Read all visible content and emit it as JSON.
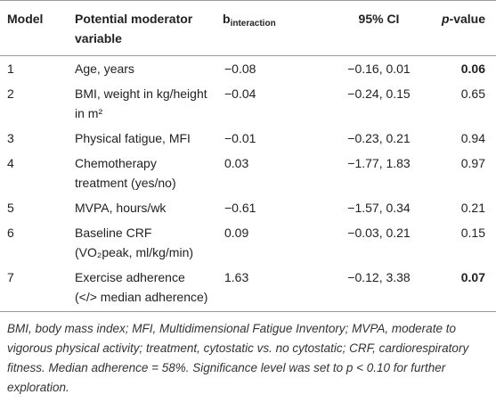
{
  "table": {
    "columns": [
      "Model",
      "Potential moderator variable",
      [
        {
          "text": "b"
        },
        {
          "text": "interaction",
          "sub": true
        }
      ],
      "95% CI",
      [
        {
          "text": "p",
          "italic": true
        },
        {
          "text": "-value"
        }
      ]
    ],
    "rows": [
      {
        "cells": [
          "1",
          "Age, years",
          "−0.08",
          "−0.16, 0.01",
          "0.06"
        ],
        "significant": true
      },
      {
        "cells": [
          "2",
          "BMI, weight in kg/height in m²",
          "−0.04",
          "−0.24, 0.15",
          "0.65"
        ],
        "significant": false
      },
      {
        "cells": [
          "3",
          "Physical fatigue, MFI",
          "−0.01",
          "−0.23, 0.21",
          "0.94"
        ],
        "significant": false
      },
      {
        "cells": [
          "4",
          "Chemotherapy treatment (yes/no)",
          "0.03",
          "−1.77, 1.83",
          "0.97"
        ],
        "significant": false
      },
      {
        "cells": [
          "5",
          "MVPA, hours/wk",
          "−0.61",
          "−1.57, 0.34",
          "0.21"
        ],
        "significant": false
      },
      {
        "cells": [
          "6",
          "Baseline CRF (VO₂peak, ml/kg/min)",
          "0.09",
          "−0.03, 0.21",
          "0.15"
        ],
        "significant": false
      },
      {
        "cells": [
          "7",
          "Exercise adherence (</> median adherence)",
          "1.63",
          "−0.12, 3.38",
          "0.07"
        ],
        "significant": true
      }
    ],
    "footnote": "BMI, body mass index; MFI, Multidimensional Fatigue Inventory; MVPA, moderate to vigorous physical activity; treatment, cytostatic vs. no cytostatic; CRF, cardiorespiratory fitness. Median adherence = 58%. Significance level was set to p < 0.10 for further exploration."
  }
}
